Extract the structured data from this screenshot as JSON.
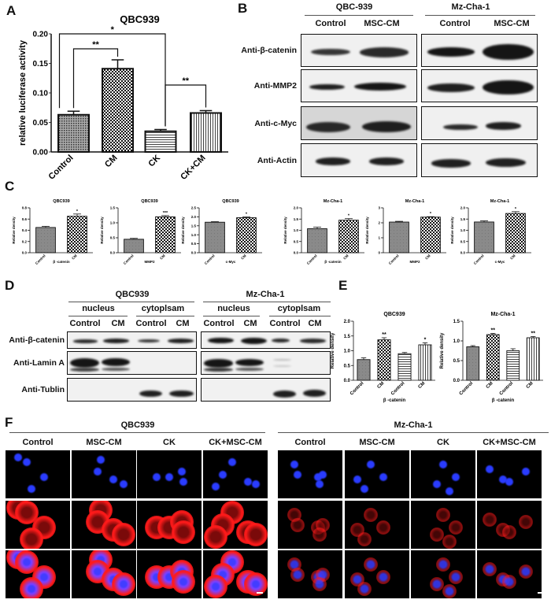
{
  "panels": {
    "A": "A",
    "B": "B",
    "C": "C",
    "D": "D",
    "E": "E",
    "F": "F"
  },
  "colors": {
    "blot_band": "#151515",
    "dapi": "#2a3cff",
    "beta_catenin_stain": "#ff1a1a",
    "background": "#ffffff"
  },
  "panel_b": {
    "groups": [
      "QBC-939",
      "Mz-Cha-1"
    ],
    "lanes": [
      "Control",
      "MSC-CM",
      "Control",
      "MSC-CM"
    ],
    "rows": [
      "Anti-β-catenin",
      "Anti-MMP2",
      "Anti-c-Myc",
      "Anti-Actin"
    ]
  },
  "panel_d": {
    "groups": [
      "QBC939",
      "Mz-Cha-1"
    ],
    "fractions": [
      "nucleus",
      "cytoplsam",
      "nucleus",
      "cytoplsam"
    ],
    "lanes": [
      "Control",
      "CM",
      "Control",
      "CM",
      "Control",
      "CM",
      "Control",
      "CM"
    ],
    "rows": [
      "Anti-β-catenin",
      "Anti-Lamin A",
      "Anti-Tublin"
    ]
  },
  "panel_f": {
    "groups": [
      "QBC939",
      "Mz-Cha-1"
    ],
    "columns": [
      "Control",
      "MSC-CM",
      "CK",
      "CK+MSC-CM",
      "Control",
      "MSC-CM",
      "CK",
      "CK+MSC-CM"
    ],
    "scale_bar_icon": "scale-bar"
  },
  "chart_data": [
    {
      "id": "A",
      "type": "bar",
      "title": "QBC939",
      "ylabel": "relative luciferase activity",
      "xlabel": "",
      "categories": [
        "Control",
        "CM",
        "CK",
        "CK+CM"
      ],
      "values": [
        0.063,
        0.141,
        0.035,
        0.066
      ],
      "errors": [
        0.006,
        0.015,
        0.003,
        0.004
      ],
      "ylim": [
        0,
        0.2
      ],
      "yticks": [
        "0.00",
        "0.05",
        "0.10",
        "0.15",
        "0.20"
      ],
      "grid": false,
      "fills": [
        "dots",
        "checker",
        "hstripes",
        "vstripes"
      ],
      "significance": [
        {
          "from": 0,
          "to": 1,
          "label": "**"
        },
        {
          "from": 0,
          "to": 2,
          "label": "*"
        },
        {
          "from": 2,
          "to": 3,
          "label": "**"
        }
      ]
    },
    {
      "id": "C1",
      "type": "bar",
      "title": "QBC939",
      "ylabel": "Relative density",
      "xlabel": "β -catenin",
      "categories": [
        "Control",
        "CM"
      ],
      "values": [
        0.45,
        0.65
      ],
      "errors": [
        0.02,
        0.04
      ],
      "ylim": [
        0,
        0.8
      ],
      "yticks": [
        "0.0",
        "0.2",
        "0.4",
        "0.6",
        "0.8"
      ],
      "sig": [
        "",
        "*"
      ],
      "fills": [
        "gray",
        "checker"
      ]
    },
    {
      "id": "C2",
      "type": "bar",
      "title": "QBC939",
      "ylabel": "Relative density",
      "xlabel": "MMP2",
      "categories": [
        "Control",
        "CM"
      ],
      "values": [
        0.45,
        1.2
      ],
      "errors": [
        0.03,
        0.04
      ],
      "ylim": [
        0,
        1.5
      ],
      "yticks": [
        "0.0",
        "0.5",
        "1.0",
        "1.5"
      ],
      "sig": [
        "",
        "***"
      ],
      "fills": [
        "gray",
        "checker"
      ]
    },
    {
      "id": "C3",
      "type": "bar",
      "title": "QBC939",
      "ylabel": "Relative density",
      "xlabel": "c-Myc",
      "categories": [
        "Control",
        "CM"
      ],
      "values": [
        1.7,
        1.95
      ],
      "errors": [
        0.03,
        0.04
      ],
      "ylim": [
        0,
        2.5
      ],
      "yticks": [
        "0.0",
        "0.5",
        "1.0",
        "1.5",
        "2.0",
        "2.5"
      ],
      "sig": [
        "",
        "*"
      ],
      "fills": [
        "gray",
        "checker"
      ]
    },
    {
      "id": "C4",
      "type": "bar",
      "title": "Mz-Cha-1",
      "ylabel": "Relative density",
      "xlabel": "β -catenin",
      "categories": [
        "Control",
        "CM"
      ],
      "values": [
        1.07,
        1.45
      ],
      "errors": [
        0.07,
        0.07
      ],
      "ylim": [
        0,
        2.0
      ],
      "yticks": [
        "0.0",
        "0.5",
        "1.0",
        "1.5",
        "2.0"
      ],
      "sig": [
        "",
        "*"
      ],
      "fills": [
        "gray",
        "checker"
      ]
    },
    {
      "id": "C5",
      "type": "bar",
      "title": "Mz-Cha-1",
      "ylabel": "Relative density",
      "xlabel": "MMP2",
      "categories": [
        "Control",
        "CM"
      ],
      "values": [
        2.05,
        2.38
      ],
      "errors": [
        0.05,
        0.03
      ],
      "ylim": [
        0,
        3
      ],
      "yticks": [
        "0",
        "1",
        "2",
        "3"
      ],
      "sig": [
        "",
        "*"
      ],
      "fills": [
        "gray",
        "checker"
      ]
    },
    {
      "id": "C6",
      "type": "bar",
      "title": "Mz-Cha-1",
      "ylabel": "Relative density",
      "xlabel": "c-Myc",
      "categories": [
        "Control",
        "CM"
      ],
      "values": [
        1.37,
        1.75
      ],
      "errors": [
        0.05,
        0.08
      ],
      "ylim": [
        0,
        2.0
      ],
      "yticks": [
        "0.0",
        "0.5",
        "1.0",
        "1.5",
        "2.0"
      ],
      "sig": [
        "",
        "*"
      ],
      "fills": [
        "gray",
        "checker"
      ]
    },
    {
      "id": "E1",
      "type": "bar",
      "title": "QBC939",
      "ylabel": "Relative density",
      "xlabel": "β -catenin",
      "categories": [
        "Control",
        "CM",
        "Control",
        "CM"
      ],
      "values": [
        0.7,
        1.37,
        0.9,
        1.2
      ],
      "errors": [
        0.06,
        0.07,
        0.04,
        0.07
      ],
      "ylim": [
        0,
        2.0
      ],
      "yticks": [
        "0.0",
        "0.5",
        "1.0",
        "1.5",
        "2.0"
      ],
      "sig": [
        "",
        "**",
        "",
        "*"
      ],
      "fills": [
        "gray",
        "checker",
        "hstripes",
        "vstripes"
      ]
    },
    {
      "id": "E2",
      "type": "bar",
      "title": "Mz-Cha-1",
      "ylabel": "Relative density",
      "xlabel": "β -catenin",
      "categories": [
        "Control",
        "CM",
        "Control",
        "CM"
      ],
      "values": [
        0.85,
        1.16,
        0.75,
        1.08
      ],
      "errors": [
        0.03,
        0.03,
        0.05,
        0.03
      ],
      "ylim": [
        0,
        1.5
      ],
      "yticks": [
        "0.0",
        "0.5",
        "1.0",
        "1.5"
      ],
      "sig": [
        "",
        "**",
        "",
        "**"
      ],
      "fills": [
        "gray",
        "checker",
        "hstripes",
        "vstripes"
      ]
    }
  ]
}
